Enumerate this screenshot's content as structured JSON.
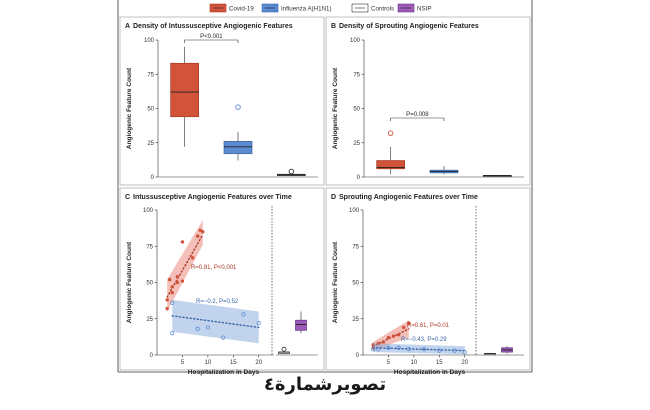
{
  "legend": [
    {
      "label": "Covid-19",
      "color": "#d0533a"
    },
    {
      "label": "Influenza A(H1N1)",
      "color": "#5b8bd0"
    },
    {
      "label": "Controls",
      "color": "#ffffff"
    },
    {
      "label": "NSIP",
      "color": "#9a5ab5"
    }
  ],
  "caption": "تصويرشمارة٤",
  "chart_data": [
    {
      "type": "box",
      "panel_letter": "A",
      "title": "Density of Intussusceptive Angiogenic Features",
      "ylabel": "Angiogenic Feature Count",
      "ylim": [
        0,
        100
      ],
      "yticks": [
        "0",
        "25",
        "50",
        "75",
        "100"
      ],
      "boxes": [
        {
          "group": "Covid-19",
          "min": 22,
          "q1": 44,
          "median": 62,
          "q3": 83,
          "max": 95,
          "outliers": []
        },
        {
          "group": "Influenza A(H1N1)",
          "min": 12,
          "q1": 17,
          "median": 22,
          "q3": 26,
          "max": 33,
          "outliers": [
            51
          ]
        },
        {
          "group": "Controls",
          "min": 1,
          "q1": 1,
          "median": 1.5,
          "q3": 2,
          "max": 2.5,
          "outliers": [
            4
          ]
        }
      ],
      "annotations": [
        {
          "text": "P<0.001"
        }
      ]
    },
    {
      "type": "box",
      "panel_letter": "B",
      "title": "Density of Sprouting Angiogenic Features",
      "ylabel": "Angiogenic Feature Count",
      "ylim": [
        0,
        100
      ],
      "yticks": [
        "0",
        "25",
        "50",
        "75",
        "100"
      ],
      "boxes": [
        {
          "group": "Covid-19",
          "min": 2,
          "q1": 6,
          "median": 7,
          "q3": 12,
          "max": 22,
          "outliers": [
            32
          ]
        },
        {
          "group": "Influenza A(H1N1)",
          "min": 2,
          "q1": 3,
          "median": 4,
          "q3": 5,
          "max": 8,
          "outliers": []
        },
        {
          "group": "Controls",
          "min": 0.5,
          "q1": 0.7,
          "median": 1,
          "q3": 1.2,
          "max": 1.5,
          "outliers": []
        }
      ],
      "annotations": [
        {
          "text": "P=0.008"
        }
      ]
    },
    {
      "type": "scatter",
      "panel_letter": "C",
      "title": "Intussusceptive Angiogenic Features over Time",
      "ylabel": "Angiogenic Feature Count",
      "xlabel": "Hospitalization in Days",
      "ylim": [
        0,
        100
      ],
      "xlim": [
        0,
        23
      ],
      "yticks": [
        "0",
        "25",
        "50",
        "75",
        "100"
      ],
      "xticks": [
        "5",
        "10",
        "15",
        "20"
      ],
      "series": [
        {
          "group": "Covid-19",
          "points": [
            [
              2,
              32
            ],
            [
              2,
              38
            ],
            [
              2.5,
              52
            ],
            [
              3,
              43
            ],
            [
              3,
              47
            ],
            [
              4,
              50
            ],
            [
              4,
              54
            ],
            [
              5,
              51
            ],
            [
              5,
              78
            ],
            [
              7,
              67
            ],
            [
              8,
              82
            ],
            [
              8.5,
              86
            ],
            [
              9,
              85
            ]
          ],
          "fit": [
            [
              2,
              40
            ],
            [
              9,
              83
            ]
          ],
          "band": [
            [
              [
                2,
                30
              ],
              [
                9,
                76
              ]
            ],
            [
              [
                2,
                52
              ],
              [
                9,
                93
              ]
            ]
          ],
          "annotation": "R=0.81, P<0.001"
        },
        {
          "group": "Influenza A(H1N1)",
          "points": [
            [
              3,
              36
            ],
            [
              3,
              15
            ],
            [
              8,
              18
            ],
            [
              10,
              19
            ],
            [
              13,
              12
            ],
            [
              17,
              28
            ],
            [
              20,
              22
            ]
          ],
          "fit": [
            [
              3,
              27
            ],
            [
              20,
              19
            ]
          ],
          "band": [
            [
              [
                3,
                16
              ],
              [
                20,
                8
              ]
            ],
            [
              [
                3,
                38
              ],
              [
                20,
                30
              ]
            ]
          ],
          "annotation": "R=−0.2, P=0.52"
        }
      ],
      "side_boxes": [
        {
          "group": "Controls",
          "min": 1,
          "q1": 1,
          "median": 2,
          "q3": 2,
          "max": 3,
          "outliers": [
            4
          ]
        },
        {
          "group": "NSIP",
          "min": 15,
          "q1": 17,
          "median": 21,
          "q3": 24,
          "max": 30,
          "outliers": []
        }
      ]
    },
    {
      "type": "scatter",
      "panel_letter": "D",
      "title": "Sprouting Angiogenic Features over Time",
      "ylabel": "Angiogenic Feature Count",
      "xlabel": "Hospitalization in Days",
      "ylim": [
        0,
        100
      ],
      "xlim": [
        0,
        23
      ],
      "yticks": [
        "0",
        "25",
        "50",
        "75",
        "100"
      ],
      "xticks": [
        "5",
        "10",
        "15",
        "20"
      ],
      "series": [
        {
          "group": "Covid-19",
          "points": [
            [
              2,
              5
            ],
            [
              2,
              7
            ],
            [
              3,
              8
            ],
            [
              4,
              9
            ],
            [
              5,
              12
            ],
            [
              6,
              13
            ],
            [
              7,
              14
            ],
            [
              8,
              19
            ],
            [
              9,
              22
            ]
          ],
          "fit": [
            [
              2,
              6
            ],
            [
              9,
              18
            ]
          ],
          "band": [
            [
              [
                2,
                3
              ],
              [
                9,
                12
              ]
            ],
            [
              [
                2,
                9
              ],
              [
                9,
                24
              ]
            ]
          ],
          "annotation": "R=0.61, P=0.01"
        },
        {
          "group": "Influenza A(H1N1)",
          "points": [
            [
              2,
              4
            ],
            [
              3,
              4
            ],
            [
              5,
              5
            ],
            [
              7,
              5
            ],
            [
              9,
              4
            ],
            [
              12,
              4
            ],
            [
              15,
              3
            ],
            [
              18,
              3
            ],
            [
              20,
              2
            ]
          ],
          "fit": [
            [
              2,
              5
            ],
            [
              20,
              3
            ]
          ],
          "band": [
            [
              [
                2,
                2
              ],
              [
                20,
                0.5
              ]
            ],
            [
              [
                2,
                8
              ],
              [
                20,
                6
              ]
            ]
          ],
          "annotation": "R=−0.43, P=0.29"
        }
      ],
      "side_boxes": [
        {
          "group": "Controls",
          "min": 0.5,
          "q1": 0.5,
          "median": 1,
          "q3": 1,
          "max": 1.5,
          "outliers": []
        },
        {
          "group": "NSIP",
          "min": 1,
          "q1": 2,
          "median": 3.5,
          "q3": 5,
          "max": 6,
          "outliers": []
        }
      ]
    }
  ]
}
